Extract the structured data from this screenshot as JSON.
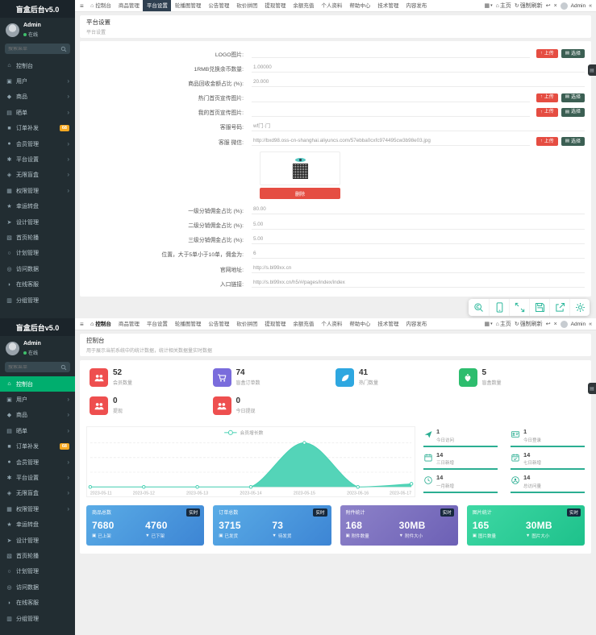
{
  "app": {
    "title": "盲盒后台v5.0",
    "user_name": "Admin",
    "user_status": "在线",
    "search_placeholder": "搜索菜单"
  },
  "sidebar": {
    "items": [
      {
        "icon": "dashboard-icon",
        "label": "控制台"
      },
      {
        "icon": "user-icon",
        "label": "用户",
        "arrow": true
      },
      {
        "icon": "goods-icon",
        "label": "商品",
        "arrow": true
      },
      {
        "icon": "show-icon",
        "label": "晒单",
        "arrow": true
      },
      {
        "icon": "order-icon",
        "label": "订单补发",
        "badge": "68"
      },
      {
        "icon": "member-icon",
        "label": "会员管理",
        "arrow": true
      },
      {
        "icon": "platform-icon",
        "label": "平台设置",
        "arrow": true
      },
      {
        "icon": "box-icon",
        "label": "无限盲盒",
        "arrow": true
      },
      {
        "icon": "auth-icon",
        "label": "权限管理",
        "arrow": true
      },
      {
        "icon": "wheel-icon",
        "label": "幸运转盘"
      },
      {
        "icon": "design-icon",
        "label": "设计管理"
      },
      {
        "icon": "banner-icon",
        "label": "首页轮播"
      },
      {
        "icon": "plan-icon",
        "label": "计划管理"
      },
      {
        "icon": "visit-icon",
        "label": "访问数据"
      },
      {
        "icon": "service-icon",
        "label": "在线客服"
      },
      {
        "icon": "group-icon",
        "label": "分组管理"
      }
    ]
  },
  "navbar": {
    "tabs": [
      "控制台",
      "商品管理",
      "平台设置",
      "轮播图管理",
      "公告管理",
      "砍价拼团",
      "提现管理",
      "余额充值",
      "个人资料",
      "帮助中心",
      "技术管理",
      "内容发布"
    ],
    "right": {
      "home_label": "主页",
      "refresh_label": "强制刷新",
      "admin_label": "Admin"
    }
  },
  "settings": {
    "breadcrumb_title": "平台设置",
    "breadcrumb_sub": "平台设置",
    "upload_label": "上传",
    "choose_label": "选择",
    "qr_button_label": "删除",
    "fields": [
      {
        "label": "LOGO图片:",
        "value": "",
        "buttons": true
      },
      {
        "label": "1RMB兑换余币数量:",
        "value": "1.00000"
      },
      {
        "label": "商品回收金额占比 (%):",
        "value": "20.000"
      },
      {
        "label": "热门首页宣传图片:",
        "value": "",
        "buttons": true
      },
      {
        "label": "我的首页宣传图片:",
        "value": "",
        "buttons": true
      },
      {
        "label": "客服号码:",
        "value": "wf门·门"
      },
      {
        "label": "客服 微信:",
        "value": "http://bxd98.oss-cn-shanghai.aliyuncs.com/57ebba0cxfc974495cw3b98e03.jpg",
        "buttons": true
      },
      {
        "type": "qr"
      },
      {
        "label": "一级分销佣金占比 (%):",
        "value": "80.00"
      },
      {
        "label": "二级分销佣金占比 (%):",
        "value": "5.00"
      },
      {
        "label": "三级分销佣金占比 (%):",
        "value": "5.00"
      },
      {
        "label": "位置，大于5单小于10单，佣金为:",
        "value": "6"
      },
      {
        "label": "官网地址:",
        "value": "http://s.bl99xx.cn"
      },
      {
        "label": "入口链接:",
        "value": "http://s.bl99xx.cn/h5/#/pages/index/index"
      }
    ]
  },
  "dashboard": {
    "title": "控制台",
    "subtitle": "用于展示当前系统中的统计数据，统计相关数据量实时数据",
    "stat_cards": [
      {
        "icon": "users-icon",
        "color": "#ee4f4f",
        "value": "52",
        "label": "会员数量"
      },
      {
        "icon": "cart-icon",
        "color": "#7a6cdc",
        "value": "74",
        "label": "盲盒订单数"
      },
      {
        "icon": "leaf-icon",
        "color": "#2ea7e0",
        "value": "41",
        "label": "热门数量"
      },
      {
        "icon": "heart-icon",
        "color": "#2dbd6e",
        "value": "5",
        "label": "盲盒数量"
      },
      {
        "icon": "users-icon",
        "color": "#ee4f4f",
        "value": "0",
        "label": "提现"
      },
      {
        "icon": "users-icon",
        "color": "#ee4f4f",
        "value": "0",
        "label": "今日提现"
      }
    ],
    "mini_stats": [
      {
        "icon": "paper-plane-icon",
        "value": "1",
        "label": "今日访问"
      },
      {
        "icon": "id-card-icon",
        "value": "1",
        "label": "今日登录"
      },
      {
        "icon": "calendar-icon",
        "value": "14",
        "label": "三日新增"
      },
      {
        "icon": "calendar-check-icon",
        "value": "14",
        "label": "七日新增"
      },
      {
        "icon": "clock-icon",
        "value": "14",
        "label": "一月新增"
      },
      {
        "icon": "user-circle-icon",
        "value": "14",
        "label": "总访问量"
      }
    ],
    "gradient_cards": [
      {
        "title": "商品总数",
        "badge": "实时",
        "left_value": "7680",
        "left_label": "已上架",
        "right_value": "4760",
        "right_label": "已下架",
        "from": "#5aace6",
        "to": "#3d85d4"
      },
      {
        "title": "订单总数",
        "badge": "实时",
        "left_value": "3715",
        "left_label": "已发货",
        "right_value": "73",
        "right_label": "待发货",
        "from": "#5aace6",
        "to": "#3d85d4"
      },
      {
        "title": "附件统计",
        "badge": "实时",
        "left_value": "168",
        "left_label": "附件数量",
        "right_value": "30MB",
        "right_label": "附件大小",
        "from": "#8d82c9",
        "to": "#6c60b5"
      },
      {
        "title": "图片统计",
        "badge": "实时",
        "left_value": "165",
        "left_label": "图片数量",
        "right_value": "30MB",
        "right_label": "图片大小",
        "from": "#3ed8a4",
        "to": "#1ec18b"
      }
    ]
  },
  "chart_data": {
    "type": "area",
    "legend": [
      "会员增长数"
    ],
    "legend_position": "top-center",
    "x": [
      "2023-05-11",
      "2023-05-12",
      "2023-05-13",
      "2023-05-14",
      "2023-05-15",
      "2023-05-16",
      "2023-05-17"
    ],
    "series": [
      {
        "name": "会员增长数",
        "values": [
          0,
          0,
          0,
          0,
          14,
          0,
          1
        ]
      }
    ],
    "ylim": [
      0,
      14
    ],
    "grid": true,
    "color": "#45d0b2"
  },
  "toolbar": {
    "icons": [
      "zoom-icon",
      "mobile-icon",
      "fullscreen-icon",
      "save-icon",
      "share-icon",
      "settings-icon"
    ]
  },
  "colors": {
    "sidebar_bg": "#222d32",
    "active_green": "#00ae6e",
    "badge_orange": "#f6a821",
    "btn_red": "#e54d42",
    "btn_dark": "#3b5f53",
    "navbar_active_bg": "#2e3f50",
    "toolbar_green": "#2db89c",
    "mini_green": "#2bae92"
  }
}
